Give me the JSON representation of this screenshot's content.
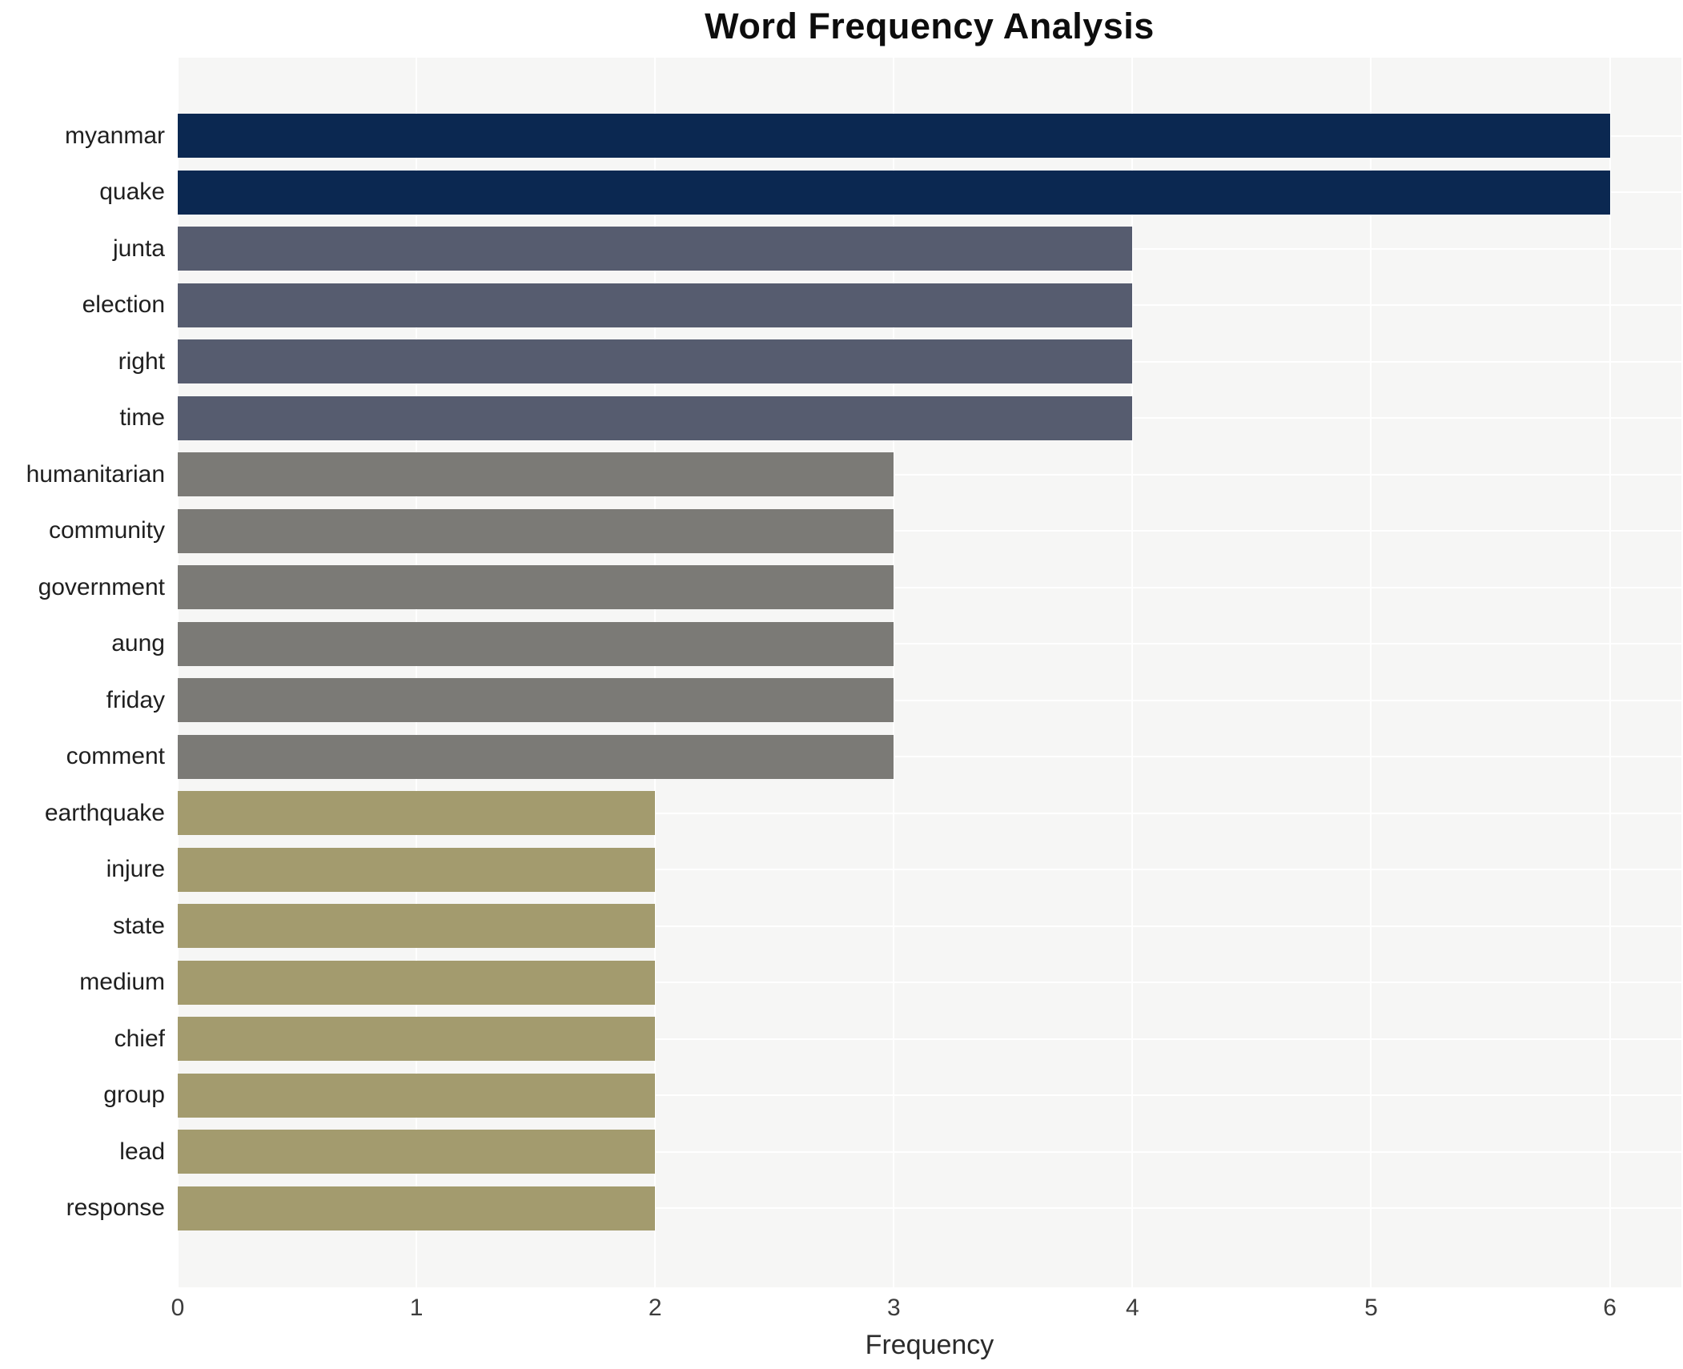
{
  "chart_data": {
    "type": "bar",
    "orientation": "horizontal",
    "title": "Word Frequency Analysis",
    "xlabel": "Frequency",
    "ylabel": "",
    "categories": [
      "myanmar",
      "quake",
      "junta",
      "election",
      "right",
      "time",
      "humanitarian",
      "community",
      "government",
      "aung",
      "friday",
      "comment",
      "earthquake",
      "injure",
      "state",
      "medium",
      "chief",
      "group",
      "lead",
      "response"
    ],
    "values": [
      6,
      6,
      4,
      4,
      4,
      4,
      3,
      3,
      3,
      3,
      3,
      3,
      2,
      2,
      2,
      2,
      2,
      2,
      2,
      2
    ],
    "bar_colors": [
      "#0b2851",
      "#0b2851",
      "#565c6f",
      "#565c6f",
      "#565c6f",
      "#565c6f",
      "#7b7a76",
      "#7b7a76",
      "#7b7a76",
      "#7b7a76",
      "#7b7a76",
      "#7b7a76",
      "#a39b6e",
      "#a39b6e",
      "#a39b6e",
      "#a39b6e",
      "#a39b6e",
      "#a39b6e",
      "#a39b6e",
      "#a39b6e"
    ],
    "value_color_map": {
      "6": "#0b2851",
      "4": "#565c6f",
      "3": "#7b7a76",
      "2": "#a39b6e"
    },
    "xticks": [
      0,
      1,
      2,
      3,
      4,
      5,
      6
    ],
    "xlim": [
      0,
      6.3
    ],
    "grid": true,
    "legend": "none",
    "plot_background": "#f6f6f5",
    "grid_color": "#ffffff"
  }
}
